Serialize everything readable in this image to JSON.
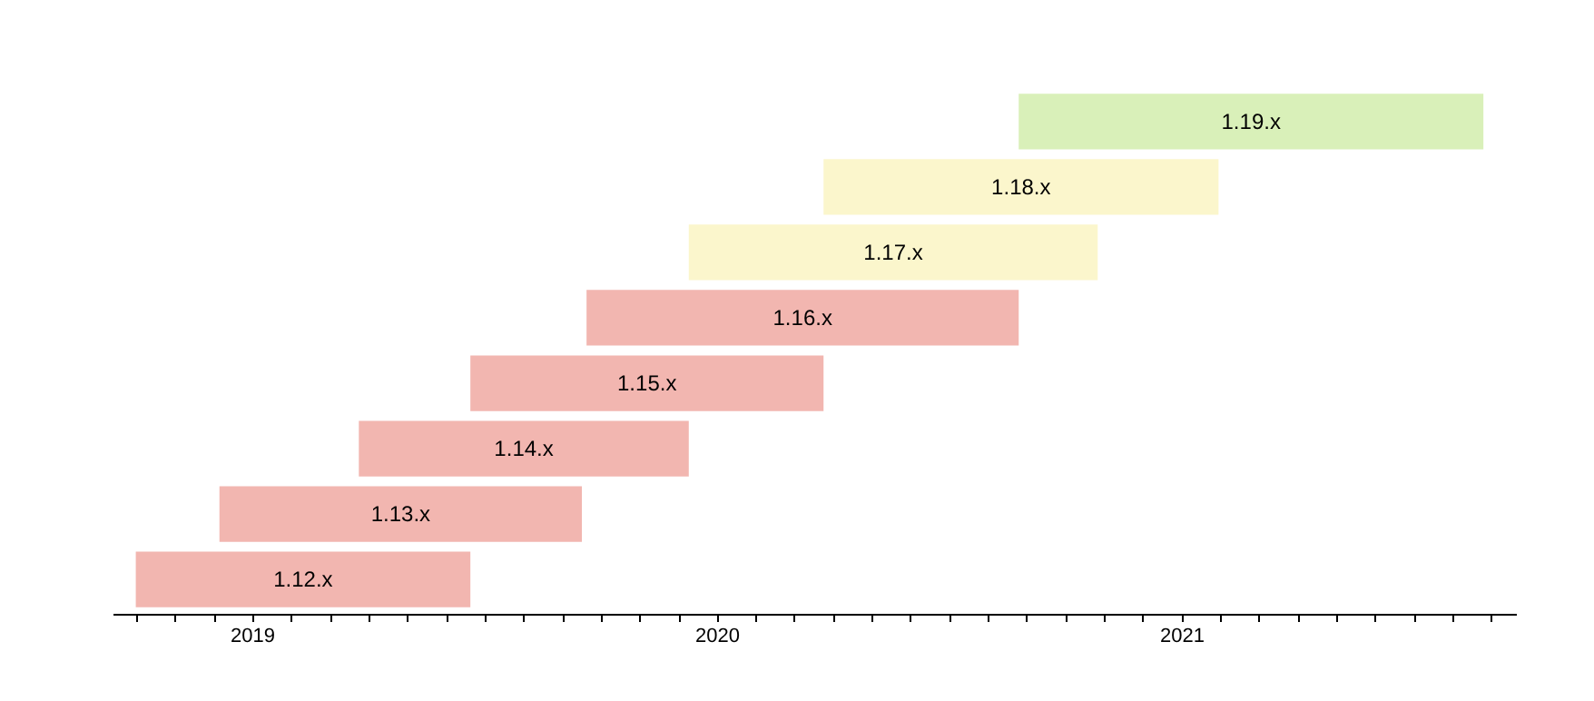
{
  "chart_data": {
    "type": "bar",
    "orientation": "horizontal",
    "categories": [
      null,
      null,
      null,
      null,
      null,
      null,
      null,
      null
    ],
    "annotations": [
      "1.19.x",
      "1.18.x",
      "1.17.x",
      "1.16.x",
      "1.15.x",
      "1.14.x",
      "1.13.x",
      "1.12.x"
    ],
    "base": [
      2020.65,
      2020.23,
      2019.94,
      2019.72,
      2019.47,
      2019.23,
      2018.93,
      2018.75
    ],
    "values": [
      1.0,
      0.85,
      0.88,
      0.93,
      0.76,
      0.71,
      0.78,
      0.72
    ],
    "colors": [
      "#d9f0b9",
      "#fbf6cc",
      "#fbf6cc",
      "#f2b6b0",
      "#f2b6b0",
      "#f2b6b0",
      "#f2b6b0",
      "#f2b6b0"
    ],
    "xlim": [
      2018.7,
      2021.72
    ],
    "xticks": [
      {
        "value": 2018.75,
        "label": null
      },
      {
        "value": 2018.833,
        "label": null
      },
      {
        "value": 2018.917,
        "label": null
      },
      2019,
      {
        "value": 2019.083,
        "label": null
      },
      {
        "value": 2019.167,
        "label": null
      },
      {
        "value": 2019.25,
        "label": null
      },
      {
        "value": 2019.333,
        "label": null
      },
      {
        "value": 2019.417,
        "label": null
      },
      {
        "value": 2019.5,
        "label": null
      },
      {
        "value": 2019.583,
        "label": null
      },
      {
        "value": 2019.667,
        "label": null
      },
      {
        "value": 2019.75,
        "label": null
      },
      {
        "value": 2019.833,
        "label": null
      },
      {
        "value": 2019.917,
        "label": null
      },
      2020,
      {
        "value": 2020.083,
        "label": null
      },
      {
        "value": 2020.167,
        "label": null
      },
      {
        "value": 2020.25,
        "label": null
      },
      {
        "value": 2020.333,
        "label": null
      },
      {
        "value": 2020.417,
        "label": null
      },
      {
        "value": 2020.5,
        "label": null
      },
      {
        "value": 2020.583,
        "label": null
      },
      {
        "value": 2020.667,
        "label": null
      },
      {
        "value": 2020.75,
        "label": null
      },
      {
        "value": 2020.833,
        "label": null
      },
      {
        "value": 2020.917,
        "label": null
      },
      2021,
      {
        "value": 2021.083,
        "label": null
      },
      {
        "value": 2021.167,
        "label": null
      },
      {
        "value": 2021.25,
        "label": null
      },
      {
        "value": 2021.333,
        "label": null
      },
      {
        "value": 2021.417,
        "label": null
      },
      {
        "value": 2021.5,
        "label": null
      },
      {
        "value": 2021.583,
        "label": null
      },
      {
        "value": 2021.667,
        "label": null
      }
    ],
    "tick_labels": "x",
    "grid": false,
    "legend": false
  }
}
